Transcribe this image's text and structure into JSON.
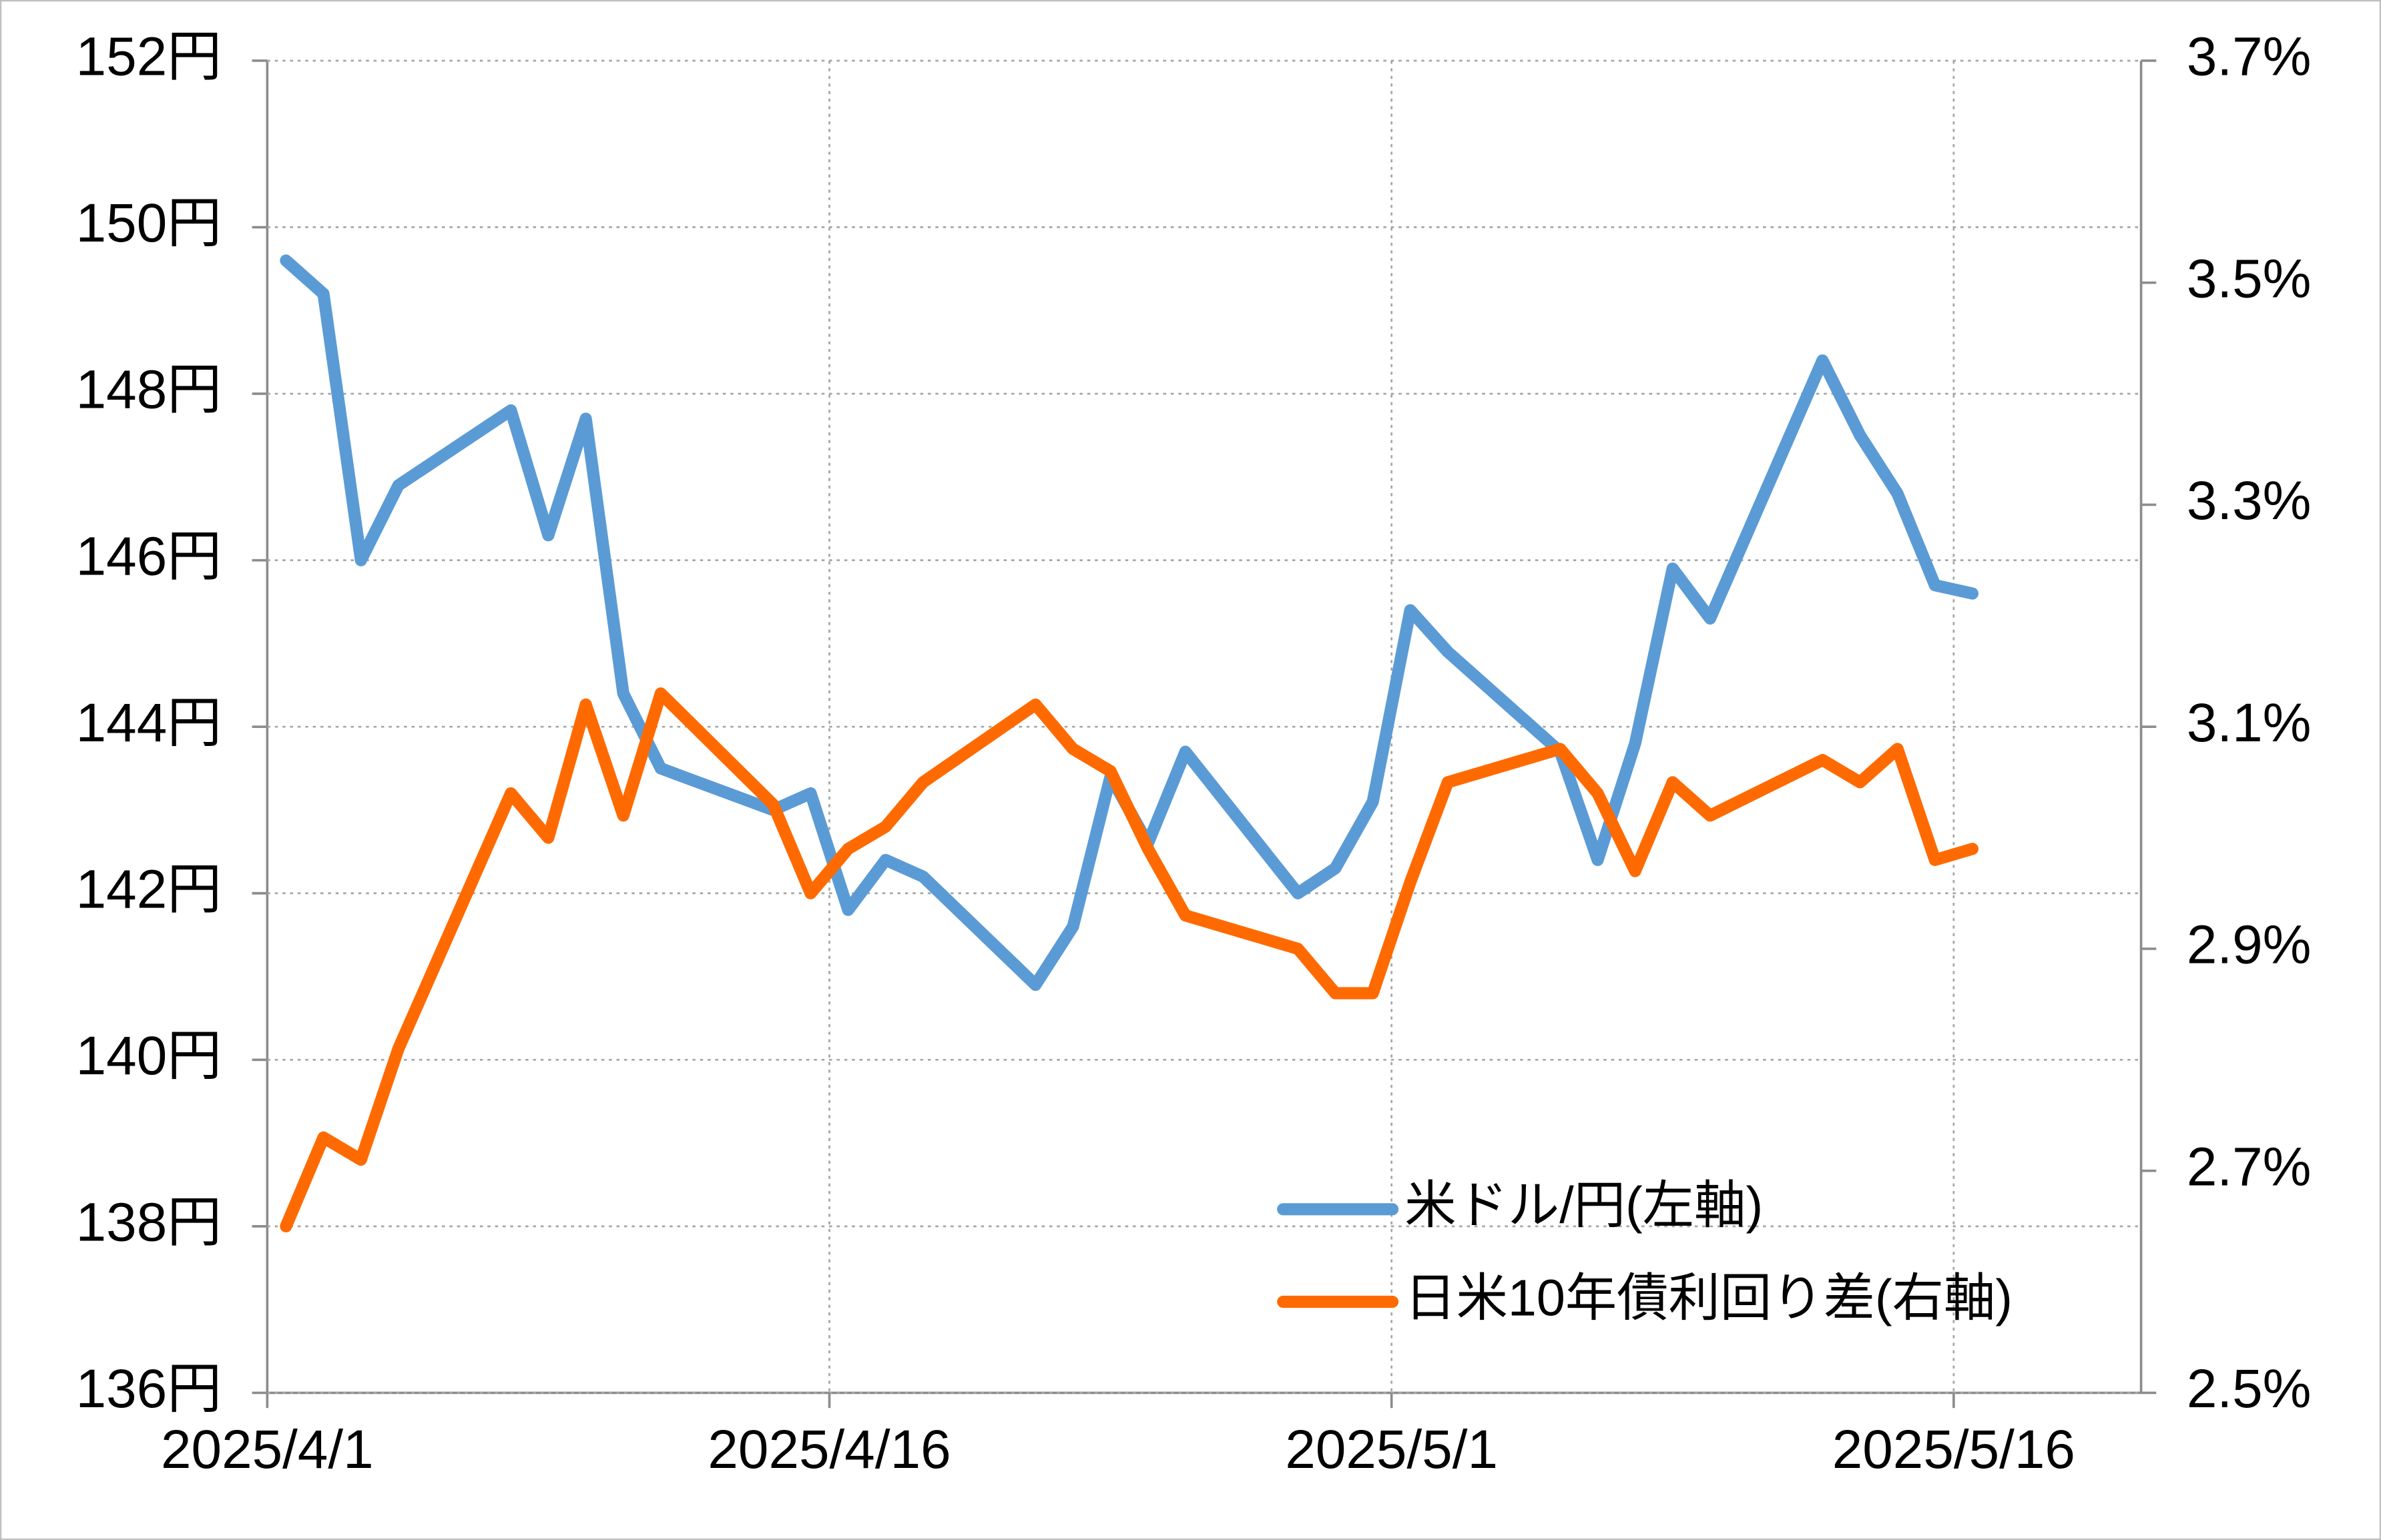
{
  "chart_data": {
    "type": "line",
    "x": [
      "2025/4/1",
      "2025/4/2",
      "2025/4/3",
      "2025/4/4",
      "2025/4/7",
      "2025/4/8",
      "2025/4/9",
      "2025/4/10",
      "2025/4/11",
      "2025/4/14",
      "2025/4/15",
      "2025/4/16",
      "2025/4/17",
      "2025/4/18",
      "2025/4/21",
      "2025/4/22",
      "2025/4/23",
      "2025/4/24",
      "2025/4/25",
      "2025/4/28",
      "2025/4/29",
      "2025/4/30",
      "2025/5/1",
      "2025/5/2",
      "2025/5/5",
      "2025/5/6",
      "2025/5/7",
      "2025/5/8",
      "2025/5/9",
      "2025/5/12",
      "2025/5/13",
      "2025/5/14",
      "2025/5/15",
      "2025/5/16"
    ],
    "series": [
      {
        "name": "米ドル/円(左軸)",
        "color": "#5b9bd5",
        "axis": "y",
        "values": [
          149.6,
          149.2,
          146.0,
          146.9,
          147.8,
          146.3,
          147.7,
          144.4,
          143.5,
          143.0,
          143.2,
          141.8,
          142.4,
          142.2,
          140.9,
          141.6,
          143.4,
          142.6,
          143.7,
          142.0,
          142.3,
          143.1,
          145.4,
          144.9,
          143.7,
          142.4,
          143.8,
          145.9,
          145.3,
          148.4,
          147.5,
          146.8,
          145.7,
          145.6
        ]
      },
      {
        "name": "日米10年債利回り差(右軸)",
        "color": "#ff6a00",
        "axis": "y2",
        "values": [
          2.65,
          2.73,
          2.71,
          2.81,
          3.04,
          3.0,
          3.12,
          3.02,
          3.13,
          3.03,
          2.95,
          2.99,
          3.01,
          3.05,
          3.12,
          3.08,
          3.06,
          2.99,
          2.93,
          2.9,
          2.86,
          2.86,
          2.96,
          3.05,
          3.08,
          3.04,
          2.97,
          3.05,
          3.02,
          3.07,
          3.05,
          3.08,
          2.98,
          2.99
        ]
      }
    ],
    "xlim": [
      "2025/4/1",
      "2025/5/21"
    ],
    "xticks": [
      "2025/4/1",
      "2025/4/16",
      "2025/5/1",
      "2025/5/16"
    ],
    "ylim": [
      136,
      152
    ],
    "yticks": [
      {
        "value": 136,
        "label": "136円"
      },
      {
        "value": 138,
        "label": "138円"
      },
      {
        "value": 140,
        "label": "140円"
      },
      {
        "value": 142,
        "label": "142円"
      },
      {
        "value": 144,
        "label": "144円"
      },
      {
        "value": 146,
        "label": "146円"
      },
      {
        "value": 148,
        "label": "148円"
      },
      {
        "value": 150,
        "label": "150円"
      },
      {
        "value": 152,
        "label": "152円"
      }
    ],
    "y2lim": [
      2.5,
      3.7
    ],
    "y2ticks": [
      {
        "value": 2.5,
        "label": "2.5%"
      },
      {
        "value": 2.7,
        "label": "2.7%"
      },
      {
        "value": 2.9,
        "label": "2.9%"
      },
      {
        "value": 3.1,
        "label": "3.1%"
      },
      {
        "value": 3.3,
        "label": "3.3%"
      },
      {
        "value": 3.5,
        "label": "3.5%"
      },
      {
        "value": 3.7,
        "label": "3.7%"
      }
    ],
    "grid": true,
    "legend": "lower right"
  }
}
